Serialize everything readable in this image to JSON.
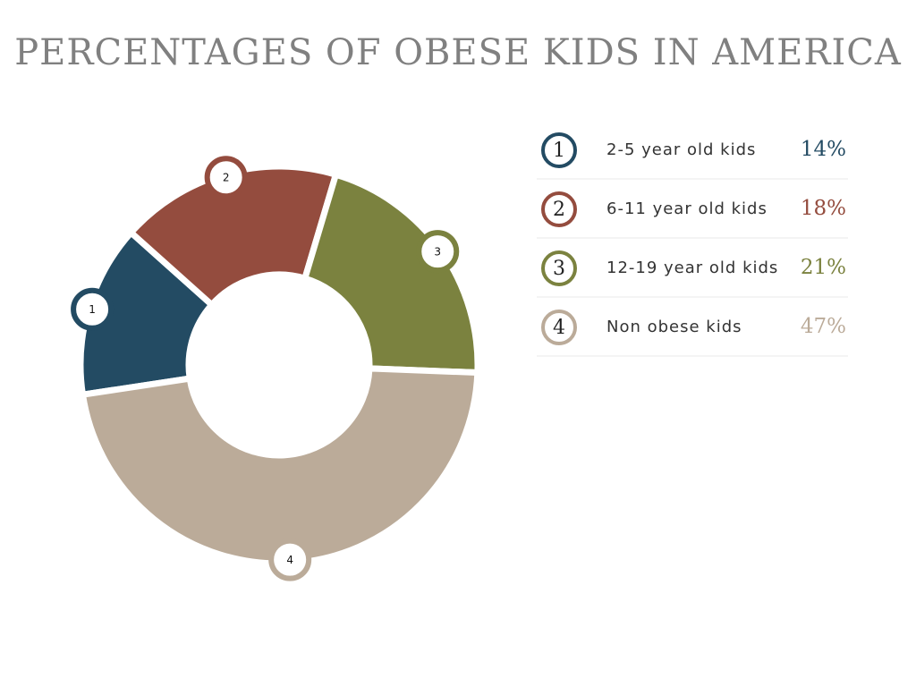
{
  "chart_data": {
    "type": "donut",
    "title": "PERCENTAGES OF OBESE KIDS IN AMERICA",
    "categories": [
      "2-5 year old kids",
      "6-11 year old kids",
      "12-19 year old kids",
      "Non obese kids"
    ],
    "indices": [
      "1",
      "2",
      "3",
      "4"
    ],
    "values": [
      14,
      18,
      21,
      47
    ],
    "value_labels": [
      "14%",
      "18%",
      "21%",
      "47%"
    ],
    "colors": [
      "#234b63",
      "#944c3e",
      "#7b823f",
      "#bbab99"
    ]
  }
}
